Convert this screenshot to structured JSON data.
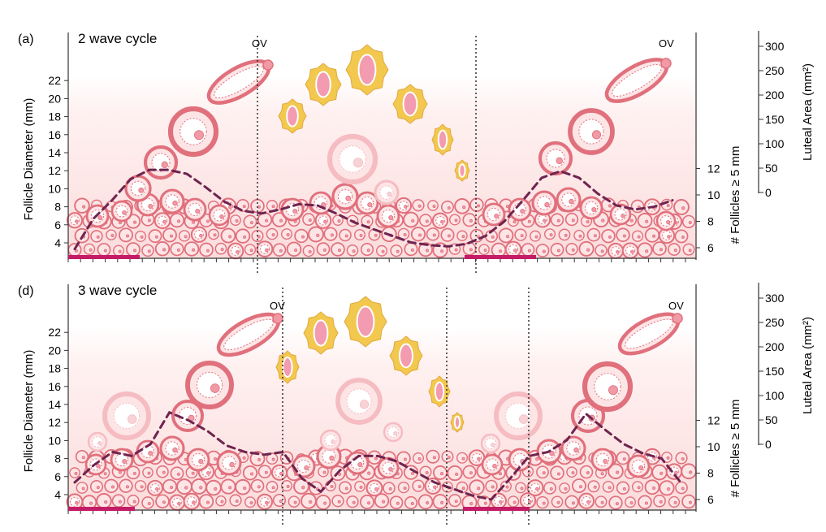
{
  "figure": {
    "panels": [
      {
        "id": "a",
        "letter": "(a)",
        "title": "2 wave cycle",
        "left_axis": {
          "label": "Follicle Diameter (mm)",
          "ticks": [
            "4",
            "6",
            "8",
            "10",
            "12",
            "14",
            "16",
            "18",
            "20",
            "22"
          ]
        },
        "right_axis_follicles": {
          "label": "# Follicles ≥ 5 mm",
          "ticks": [
            "6",
            "8",
            "10",
            "12"
          ]
        },
        "luteal_axis": {
          "label": "Luteal Area (mm²)",
          "ticks": [
            "0",
            "50",
            "100",
            "150",
            "200",
            "250",
            "300"
          ]
        },
        "ovulation_labels": [
          "OV",
          "OV"
        ],
        "waves": 2,
        "follicle_count_trace": [
          5.9,
          8.2,
          9.6,
          11.2,
          11.9,
          11.9,
          11.6,
          10.6,
          9.5,
          8.8,
          8.6,
          8.9,
          9.3,
          9.2,
          8.6,
          7.9,
          7.4,
          6.9,
          6.4,
          6.2,
          6.1,
          6.3,
          6.9,
          8.0,
          9.6,
          11.3,
          11.8,
          11.3,
          10.1,
          9.2,
          8.9,
          9.1,
          9.6
        ]
      },
      {
        "id": "d",
        "letter": "(d)",
        "title": "3 wave cycle",
        "left_axis": {
          "label": "Follicle Diameter (mm)",
          "ticks": [
            "4",
            "6",
            "8",
            "10",
            "12",
            "14",
            "16",
            "18",
            "20",
            "22"
          ]
        },
        "right_axis_follicles": {
          "label": "# Follicles ≥ 5 mm",
          "ticks": [
            "6",
            "8",
            "10",
            "12"
          ]
        },
        "luteal_axis": {
          "label": "Luteal Area (mm²)",
          "ticks": [
            "0",
            "50",
            "100",
            "150",
            "200",
            "250",
            "300"
          ]
        },
        "ovulation_labels": [
          "OV",
          "OV"
        ],
        "waves": 3,
        "follicle_count_trace": [
          7.3,
          8.6,
          9.6,
          9.3,
          10.2,
          12.6,
          12.0,
          11.2,
          10.1,
          9.6,
          9.4,
          9.6,
          7.6,
          6.6,
          8.2,
          9.3,
          9.3,
          8.9,
          8.1,
          7.3,
          6.8,
          6.3,
          6.0,
          7.6,
          9.3,
          9.6,
          10.5,
          12.5,
          11.3,
          10.2,
          9.5,
          9.1,
          7.3
        ]
      }
    ]
  },
  "colors": {
    "follicle_stroke": "#e0707c",
    "follicle_fill": "#fde5e6",
    "follicle_core": "#f19aa6",
    "faded_follicle": "#f5bcc2",
    "luteal_outer": "#f2c84f",
    "luteal_inner": "#f39bb0",
    "trace": "#6e2450",
    "day_bar": "#c41c66",
    "background_gradient_top": "#ffffff",
    "background_gradient_bottom": "#fbdfdf"
  }
}
